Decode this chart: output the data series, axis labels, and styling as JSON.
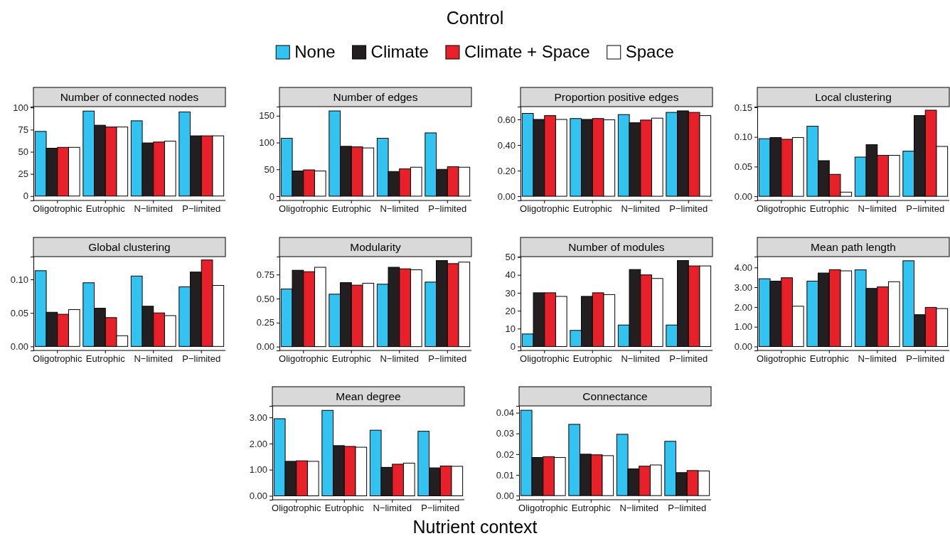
{
  "chart_data": [
    {
      "type": "bar",
      "title": "Number of connected nodes",
      "categories": [
        "Oligotrophic",
        "Eutrophic",
        "N−limited",
        "P−limited"
      ],
      "legend": "top",
      "annotations": [
        "Control",
        "Nutrient context"
      ],
      "ylim": [
        -5,
        101
      ],
      "yticks": [
        0,
        25,
        50,
        75,
        100
      ],
      "series": [
        {
          "name": "None",
          "color": "#33c3f0",
          "values": [
            73,
            96,
            85,
            95
          ]
        },
        {
          "name": "Climate",
          "color": "#231f20",
          "values": [
            54,
            80,
            60,
            68
          ]
        },
        {
          "name": "Climate + Space",
          "color": "#e8202a",
          "values": [
            55,
            78,
            61,
            68
          ]
        },
        {
          "name": "Space",
          "color": "#ffffff",
          "values": [
            55,
            78,
            62,
            68
          ]
        }
      ]
    },
    {
      "type": "bar",
      "title": "Number of edges",
      "categories": [
        "Oligotrophic",
        "Eutrophic",
        "N−limited",
        "P−limited"
      ],
      "ylim": [
        -8,
        167
      ],
      "yticks": [
        0,
        50,
        100,
        150
      ],
      "series": [
        {
          "color": "#33c3f0",
          "values": [
            108,
            159,
            108,
            118
          ]
        },
        {
          "color": "#231f20",
          "values": [
            47,
            93,
            46,
            50
          ]
        },
        {
          "color": "#e8202a",
          "values": [
            49,
            92,
            51,
            55
          ]
        },
        {
          "color": "#ffffff",
          "values": [
            47,
            90,
            54,
            54
          ]
        }
      ]
    },
    {
      "type": "bar",
      "title": "Proportion positive edges",
      "categories": [
        "Oligotrophic",
        "Eutrophic",
        "N−limited",
        "P−limited"
      ],
      "ylim": [
        -0.033,
        0.7
      ],
      "yticks": [
        {
          "value": 0,
          "label": "0.00"
        },
        {
          "value": 0.2,
          "label": "0.20"
        },
        {
          "value": 0.4,
          "label": "0.40"
        },
        {
          "value": 0.6,
          "label": "0.60"
        }
      ],
      "series": [
        {
          "color": "#33c3f0",
          "values": [
            0.647,
            0.607,
            0.638,
            0.655
          ]
        },
        {
          "color": "#231f20",
          "values": [
            0.6,
            0.6,
            0.574,
            0.667
          ]
        },
        {
          "color": "#e8202a",
          "values": [
            0.63,
            0.607,
            0.595,
            0.655
          ]
        },
        {
          "color": "#ffffff",
          "values": [
            0.6,
            0.597,
            0.61,
            0.63
          ]
        }
      ]
    },
    {
      "type": "bar",
      "title": "Local clustering",
      "categories": [
        "Oligotrophic",
        "Eutrophic",
        "N−limited",
        "P−limited"
      ],
      "ylim": [
        -0.007,
        0.151
      ],
      "yticks": [
        {
          "value": 0,
          "label": "0.00"
        },
        0.05,
        {
          "value": 0.1,
          "label": "0.10"
        },
        0.15
      ],
      "series": [
        {
          "color": "#33c3f0",
          "values": [
            0.097,
            0.118,
            0.066,
            0.076
          ]
        },
        {
          "color": "#231f20",
          "values": [
            0.099,
            0.06,
            0.087,
            0.136
          ]
        },
        {
          "color": "#e8202a",
          "values": [
            0.096,
            0.037,
            0.069,
            0.145
          ]
        },
        {
          "color": "#ffffff",
          "values": [
            0.099,
            0.007,
            0.069,
            0.084
          ]
        }
      ]
    },
    {
      "type": "bar",
      "title": "Global clustering",
      "categories": [
        "Oligotrophic",
        "Eutrophic",
        "N−limited",
        "P−limited"
      ],
      "ylim": [
        -0.006,
        0.134
      ],
      "yticks": [
        {
          "value": 0,
          "label": "0.00"
        },
        0.05,
        {
          "value": 0.1,
          "label": "0.10"
        }
      ],
      "series": [
        {
          "color": "#33c3f0",
          "values": [
            0.113,
            0.095,
            0.105,
            0.089
          ]
        },
        {
          "color": "#231f20",
          "values": [
            0.051,
            0.057,
            0.06,
            0.111
          ]
        },
        {
          "color": "#e8202a",
          "values": [
            0.048,
            0.043,
            0.05,
            0.129
          ]
        },
        {
          "color": "#ffffff",
          "values": [
            0.055,
            0.016,
            0.046,
            0.091
          ]
        }
      ]
    },
    {
      "type": "bar",
      "title": "Modularity",
      "categories": [
        "Oligotrophic",
        "Eutrophic",
        "N−limited",
        "P−limited"
      ],
      "ylim": [
        -0.04,
        0.937
      ],
      "yticks": [
        {
          "value": 0,
          "label": "0.00"
        },
        0.25,
        {
          "value": 0.5,
          "label": "0.50"
        },
        0.75
      ],
      "series": [
        {
          "color": "#33c3f0",
          "values": [
            0.6,
            0.546,
            0.65,
            0.672
          ]
        },
        {
          "color": "#231f20",
          "values": [
            0.795,
            0.666,
            0.826,
            0.896
          ]
        },
        {
          "color": "#e8202a",
          "values": [
            0.78,
            0.64,
            0.81,
            0.864
          ]
        },
        {
          "color": "#ffffff",
          "values": [
            0.826,
            0.66,
            0.8,
            0.88
          ]
        }
      ]
    },
    {
      "type": "bar",
      "title": "Number of modules",
      "categories": [
        "Oligotrophic",
        "Eutrophic",
        "N−limited",
        "P−limited"
      ],
      "ylim": [
        -2.2,
        50.2
      ],
      "yticks": [
        0,
        10,
        20,
        30,
        40,
        50
      ],
      "series": [
        {
          "color": "#33c3f0",
          "values": [
            7,
            9,
            12,
            12
          ]
        },
        {
          "color": "#231f20",
          "values": [
            30,
            28,
            43,
            48
          ]
        },
        {
          "color": "#e8202a",
          "values": [
            30,
            30,
            40,
            45
          ]
        },
        {
          "color": "#ffffff",
          "values": [
            28,
            29,
            38,
            45
          ]
        }
      ]
    },
    {
      "type": "bar",
      "title": "Mean path length",
      "categories": [
        "Oligotrophic",
        "Eutrophic",
        "N−limited",
        "P−limited"
      ],
      "ylim": [
        -0.2,
        4.55
      ],
      "yticks": [
        {
          "value": 0,
          "label": "0.00"
        },
        {
          "value": 1,
          "label": "1.00"
        },
        {
          "value": 2,
          "label": "2.00"
        },
        {
          "value": 3,
          "label": "3.00"
        },
        {
          "value": 4,
          "label": "4.00"
        }
      ],
      "series": [
        {
          "color": "#33c3f0",
          "values": [
            3.43,
            3.31,
            3.88,
            4.34
          ]
        },
        {
          "color": "#231f20",
          "values": [
            3.31,
            3.72,
            2.94,
            1.61
          ]
        },
        {
          "color": "#e8202a",
          "values": [
            3.48,
            3.89,
            3.02,
            1.98
          ]
        },
        {
          "color": "#ffffff",
          "values": [
            2.04,
            3.83,
            3.28,
            1.92
          ]
        }
      ]
    },
    {
      "type": "bar",
      "title": "Mean degree",
      "categories": [
        "Oligotrophic",
        "Eutrophic",
        "N−limited",
        "P−limited"
      ],
      "ylim": [
        -0.15,
        3.44
      ],
      "yticks": [
        {
          "value": 0,
          "label": "0.00"
        },
        {
          "value": 1,
          "label": "1.00"
        },
        {
          "value": 2,
          "label": "2.00"
        },
        {
          "value": 3,
          "label": "3.00"
        }
      ],
      "series": [
        {
          "color": "#33c3f0",
          "values": [
            2.95,
            3.27,
            2.51,
            2.47
          ]
        },
        {
          "color": "#231f20",
          "values": [
            1.32,
            1.92,
            1.09,
            1.07
          ]
        },
        {
          "color": "#e8202a",
          "values": [
            1.34,
            1.89,
            1.21,
            1.14
          ]
        },
        {
          "color": "#ffffff",
          "values": [
            1.32,
            1.86,
            1.25,
            1.13
          ]
        }
      ]
    },
    {
      "type": "bar",
      "title": "Connectance",
      "categories": [
        "Oligotrophic",
        "Eutrophic",
        "N−limited",
        "P−limited"
      ],
      "ylim": [
        -0.002,
        0.0433
      ],
      "yticks": [
        {
          "value": 0,
          "label": "0.00"
        },
        0.01,
        0.02,
        0.03,
        0.04
      ],
      "series": [
        {
          "color": "#33c3f0",
          "values": [
            0.0412,
            0.0344,
            0.0296,
            0.0262
          ]
        },
        {
          "color": "#231f20",
          "values": [
            0.0184,
            0.02,
            0.0129,
            0.0111
          ]
        },
        {
          "color": "#e8202a",
          "values": [
            0.0188,
            0.0197,
            0.0142,
            0.0121
          ]
        },
        {
          "color": "#ffffff",
          "values": [
            0.0184,
            0.0193,
            0.0148,
            0.0119
          ]
        }
      ]
    }
  ]
}
